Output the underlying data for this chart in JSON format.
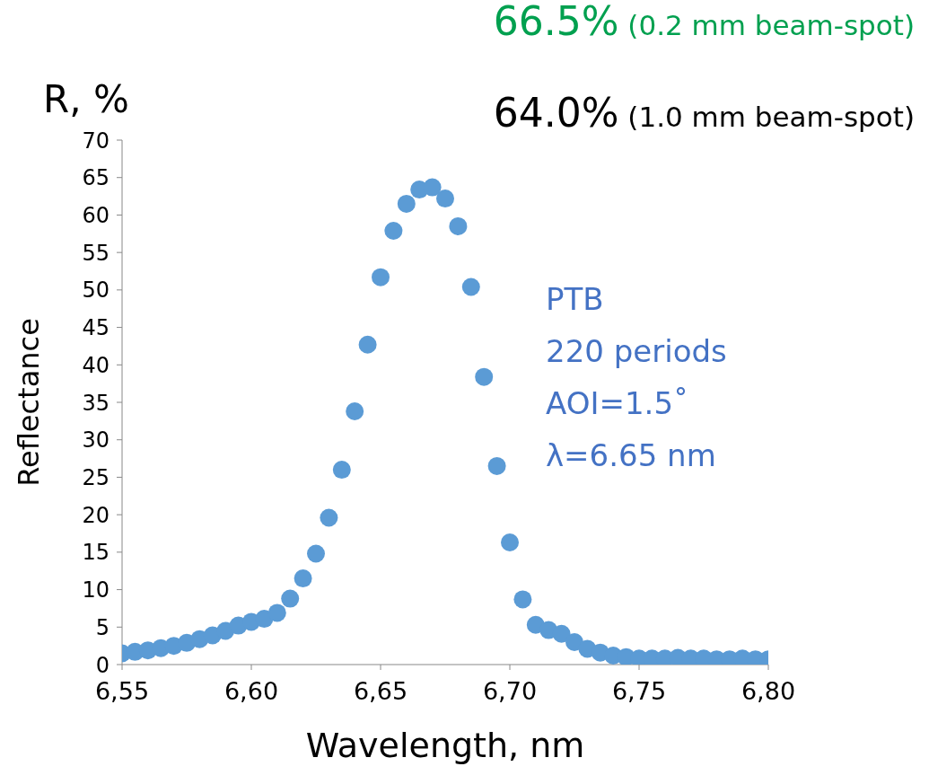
{
  "chart_data": {
    "type": "scatter",
    "xlabel": "Wavelength, nm",
    "ylabel": "Reflectance",
    "annotations": [
      "66.5% (0.2 mm beam-spot)",
      "64.0% (1.0 mm beam-spot)",
      "R, %",
      "PTB",
      "220 periods",
      "AOI=1.5˚",
      "λ=6.65 nm"
    ],
    "x": [
      6.55,
      6.555,
      6.56,
      6.565,
      6.57,
      6.575,
      6.58,
      6.585,
      6.59,
      6.595,
      6.6,
      6.605,
      6.61,
      6.615,
      6.62,
      6.625,
      6.63,
      6.635,
      6.64,
      6.645,
      6.65,
      6.655,
      6.66,
      6.665,
      6.67,
      6.675,
      6.68,
      6.685,
      6.69,
      6.695,
      6.7,
      6.705,
      6.71,
      6.715,
      6.72,
      6.725,
      6.73,
      6.735,
      6.74,
      6.745,
      6.75,
      6.755,
      6.76,
      6.765,
      6.77,
      6.775,
      6.78,
      6.785,
      6.79,
      6.795,
      6.8
    ],
    "series": [
      {
        "color": "#5b9bd5",
        "values": [
          1.5,
          1.7,
          1.9,
          2.2,
          2.5,
          2.9,
          3.4,
          3.9,
          4.5,
          5.2,
          5.7,
          6.1,
          6.9,
          8.8,
          11.5,
          14.8,
          19.6,
          26.0,
          33.8,
          42.7,
          51.7,
          57.9,
          61.5,
          63.4,
          63.7,
          62.2,
          58.5,
          50.4,
          38.4,
          26.5,
          16.3,
          8.7,
          5.3,
          4.6,
          4.1,
          3.0,
          2.1,
          1.6,
          1.2,
          1.0,
          0.8,
          0.8,
          0.8,
          0.9,
          0.8,
          0.8,
          0.7,
          0.7,
          0.8,
          0.7,
          0.7
        ]
      }
    ],
    "xlim": [
      6.55,
      6.8
    ],
    "xticks": [
      {
        "value": 6.55,
        "label": "6,55"
      },
      {
        "value": 6.6,
        "label": "6,60"
      },
      {
        "value": 6.65,
        "label": "6,65"
      },
      {
        "value": 6.7,
        "label": "6,70"
      },
      {
        "value": 6.75,
        "label": "6,75"
      },
      {
        "value": 6.8,
        "label": "6,80"
      }
    ],
    "ylim": [
      0,
      70
    ],
    "yticks": [
      0,
      5,
      10,
      15,
      20,
      25,
      30,
      35,
      40,
      45,
      50,
      55,
      60,
      65,
      70
    ],
    "marker": "circle"
  }
}
